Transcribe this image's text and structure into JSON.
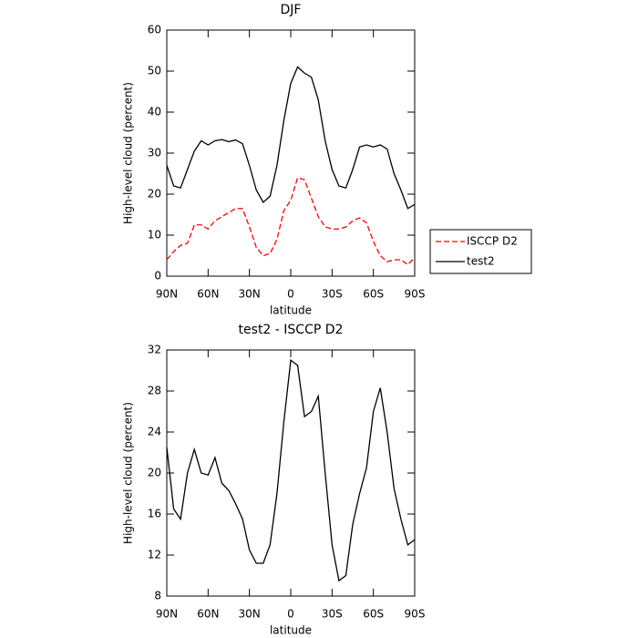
{
  "chart_data": [
    {
      "type": "line",
      "title": "DJF",
      "x_label": "latitude",
      "y_label": "High-level cloud (percent)",
      "x": [
        90,
        85,
        80,
        75,
        70,
        65,
        60,
        55,
        50,
        45,
        40,
        35,
        30,
        25,
        20,
        15,
        10,
        5,
        0,
        -5,
        -10,
        -15,
        -20,
        -25,
        -30,
        -35,
        -40,
        -45,
        -50,
        -55,
        -60,
        -65,
        -70,
        -75,
        -80,
        -85,
        -90
      ],
      "series": [
        {
          "name": "ISCCP D2",
          "color": "#ff0000",
          "linestyle": "dashed",
          "values": [
            4,
            6,
            7.5,
            8,
            12.5,
            12.5,
            11.5,
            13.5,
            14.5,
            15.5,
            16.5,
            16.5,
            12,
            7,
            5,
            5.5,
            9,
            16,
            18.5,
            24,
            23.5,
            19,
            14.5,
            12,
            11.5,
            11.5,
            12,
            13.5,
            14.2,
            13,
            8.5,
            5,
            3.5,
            4,
            4,
            2.8,
            4.5
          ]
        },
        {
          "name": "test2",
          "color": "#000000",
          "linestyle": "solid",
          "values": [
            27,
            22,
            21.5,
            26,
            30.5,
            33,
            32,
            33,
            33.3,
            32.8,
            33.2,
            32.3,
            27,
            21,
            18,
            19.5,
            27,
            38,
            47,
            51,
            49.5,
            48.5,
            43,
            33,
            26,
            22,
            21.5,
            26,
            31.5,
            32,
            31.5,
            32,
            31,
            25,
            21,
            16.5,
            17.5
          ]
        }
      ],
      "xlim": [
        90,
        -90
      ],
      "xticks": [
        {
          "value": 90,
          "label": "90N"
        },
        {
          "value": 60,
          "label": "60N"
        },
        {
          "value": 30,
          "label": "30N"
        },
        0,
        {
          "value": -30,
          "label": "30S"
        },
        {
          "value": -60,
          "label": "60S"
        },
        {
          "value": -90,
          "label": "90S"
        }
      ],
      "ylim": [
        0,
        60
      ],
      "yticks": [
        0,
        10,
        20,
        30,
        40,
        50,
        60
      ],
      "legend": "right"
    },
    {
      "type": "line",
      "title": "test2 - ISCCP D2",
      "x_label": "latitude",
      "y_label": "High-level cloud (percent)",
      "x": [
        90,
        85,
        80,
        75,
        70,
        65,
        60,
        55,
        50,
        45,
        40,
        35,
        30,
        25,
        20,
        15,
        10,
        5,
        0,
        -5,
        -10,
        -15,
        -20,
        -25,
        -30,
        -35,
        -40,
        -45,
        -50,
        -55,
        -60,
        -65,
        -70,
        -75,
        -80,
        -85,
        -90
      ],
      "values": [
        22.5,
        16.5,
        15.5,
        20,
        22.3,
        20,
        19.8,
        21.5,
        19,
        18.3,
        17,
        15.5,
        12.5,
        11.2,
        11.2,
        13,
        18,
        25,
        31,
        30.5,
        25.5,
        26,
        27.5,
        20,
        13,
        9.5,
        10,
        15,
        18,
        20.5,
        26,
        28.3,
        24,
        18.5,
        15.5,
        13,
        13.5
      ],
      "color": "#000000",
      "xlim": [
        90,
        -90
      ],
      "xticks": [
        {
          "value": 90,
          "label": "90N"
        },
        {
          "value": 60,
          "label": "60N"
        },
        {
          "value": 30,
          "label": "30N"
        },
        0,
        {
          "value": -30,
          "label": "30S"
        },
        {
          "value": -60,
          "label": "60S"
        },
        {
          "value": -90,
          "label": "90S"
        }
      ],
      "ylim": [
        8,
        32
      ],
      "yticks": [
        8,
        12,
        16,
        20,
        24,
        28,
        32
      ]
    }
  ]
}
